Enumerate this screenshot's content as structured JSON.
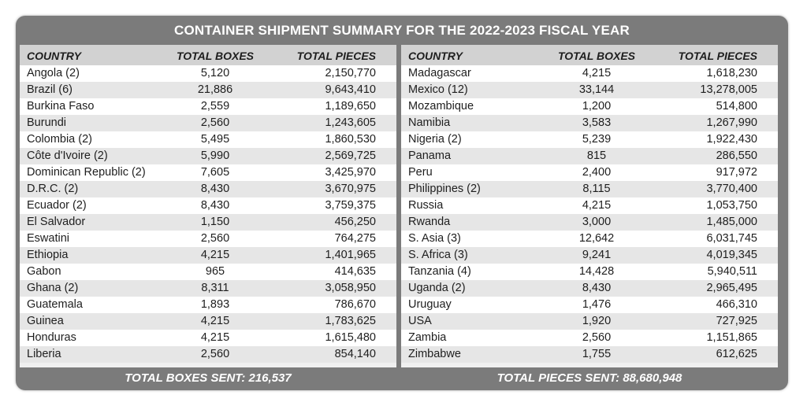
{
  "title": "CONTAINER SHIPMENT SUMMARY FOR THE 2022-2023 FISCAL YEAR",
  "headers": {
    "country": "COUNTRY",
    "boxes": "TOTAL BOXES",
    "pieces": "TOTAL PIECES"
  },
  "left_rows": [
    {
      "country": "Angola (2)",
      "boxes": "5,120",
      "pieces": "2,150,770"
    },
    {
      "country": "Brazil (6)",
      "boxes": "21,886",
      "pieces": "9,643,410"
    },
    {
      "country": "Burkina Faso",
      "boxes": "2,559",
      "pieces": "1,189,650"
    },
    {
      "country": "Burundi",
      "boxes": "2,560",
      "pieces": "1,243,605"
    },
    {
      "country": "Colombia (2)",
      "boxes": "5,495",
      "pieces": "1,860,530"
    },
    {
      "country": "Côte d'Ivoire (2)",
      "boxes": "5,990",
      "pieces": "2,569,725"
    },
    {
      "country": "Dominican Republic (2)",
      "boxes": "7,605",
      "pieces": "3,425,970"
    },
    {
      "country": "D.R.C. (2)",
      "boxes": "8,430",
      "pieces": "3,670,975"
    },
    {
      "country": "Ecuador (2)",
      "boxes": "8,430",
      "pieces": "3,759,375"
    },
    {
      "country": "El Salvador",
      "boxes": "1,150",
      "pieces": "456,250"
    },
    {
      "country": "Eswatini",
      "boxes": "2,560",
      "pieces": "764,275"
    },
    {
      "country": "Ethiopia",
      "boxes": "4,215",
      "pieces": "1,401,965"
    },
    {
      "country": "Gabon",
      "boxes": "965",
      "pieces": "414,635"
    },
    {
      "country": "Ghana (2)",
      "boxes": "8,311",
      "pieces": "3,058,950"
    },
    {
      "country": "Guatemala",
      "boxes": "1,893",
      "pieces": "786,670"
    },
    {
      "country": "Guinea",
      "boxes": "4,215",
      "pieces": "1,783,625"
    },
    {
      "country": "Honduras",
      "boxes": "4,215",
      "pieces": "1,615,480"
    },
    {
      "country": "Liberia",
      "boxes": "2,560",
      "pieces": "854,140"
    }
  ],
  "right_rows": [
    {
      "country": "Madagascar",
      "boxes": "4,215",
      "pieces": "1,618,230"
    },
    {
      "country": "Mexico (12)",
      "boxes": "33,144",
      "pieces": "13,278,005"
    },
    {
      "country": "Mozambique",
      "boxes": "1,200",
      "pieces": "514,800"
    },
    {
      "country": "Namibia",
      "boxes": "3,583",
      "pieces": "1,267,990"
    },
    {
      "country": "Nigeria (2)",
      "boxes": "5,239",
      "pieces": "1,922,430"
    },
    {
      "country": "Panama",
      "boxes": "815",
      "pieces": "286,550"
    },
    {
      "country": "Peru",
      "boxes": "2,400",
      "pieces": "917,972"
    },
    {
      "country": "Philippines (2)",
      "boxes": "8,115",
      "pieces": "3,770,400"
    },
    {
      "country": "Russia",
      "boxes": "4,215",
      "pieces": "1,053,750"
    },
    {
      "country": "Rwanda",
      "boxes": "3,000",
      "pieces": "1,485,000"
    },
    {
      "country": "S. Asia (3)",
      "boxes": "12,642",
      "pieces": "6,031,745"
    },
    {
      "country": "S. Africa (3)",
      "boxes": "9,241",
      "pieces": "4,019,345"
    },
    {
      "country": "Tanzania (4)",
      "boxes": "14,428",
      "pieces": "5,940,511"
    },
    {
      "country": "Uganda (2)",
      "boxes": "8,430",
      "pieces": "2,965,495"
    },
    {
      "country": "Uruguay",
      "boxes": "1,476",
      "pieces": "466,310"
    },
    {
      "country": "USA",
      "boxes": "1,920",
      "pieces": "727,925"
    },
    {
      "country": "Zambia",
      "boxes": "2,560",
      "pieces": "1,151,865"
    },
    {
      "country": "Zimbabwe",
      "boxes": "1,755",
      "pieces": "612,625"
    }
  ],
  "footer": {
    "boxes_total": "TOTAL BOXES SENT: 216,537",
    "pieces_total": "TOTAL PIECES SENT: 88,680,948"
  },
  "colors": {
    "frame": "#7b7b7b",
    "header_row": "#d2d2d2",
    "row_light": "#ffffff",
    "row_dark": "#e6e6e6"
  }
}
